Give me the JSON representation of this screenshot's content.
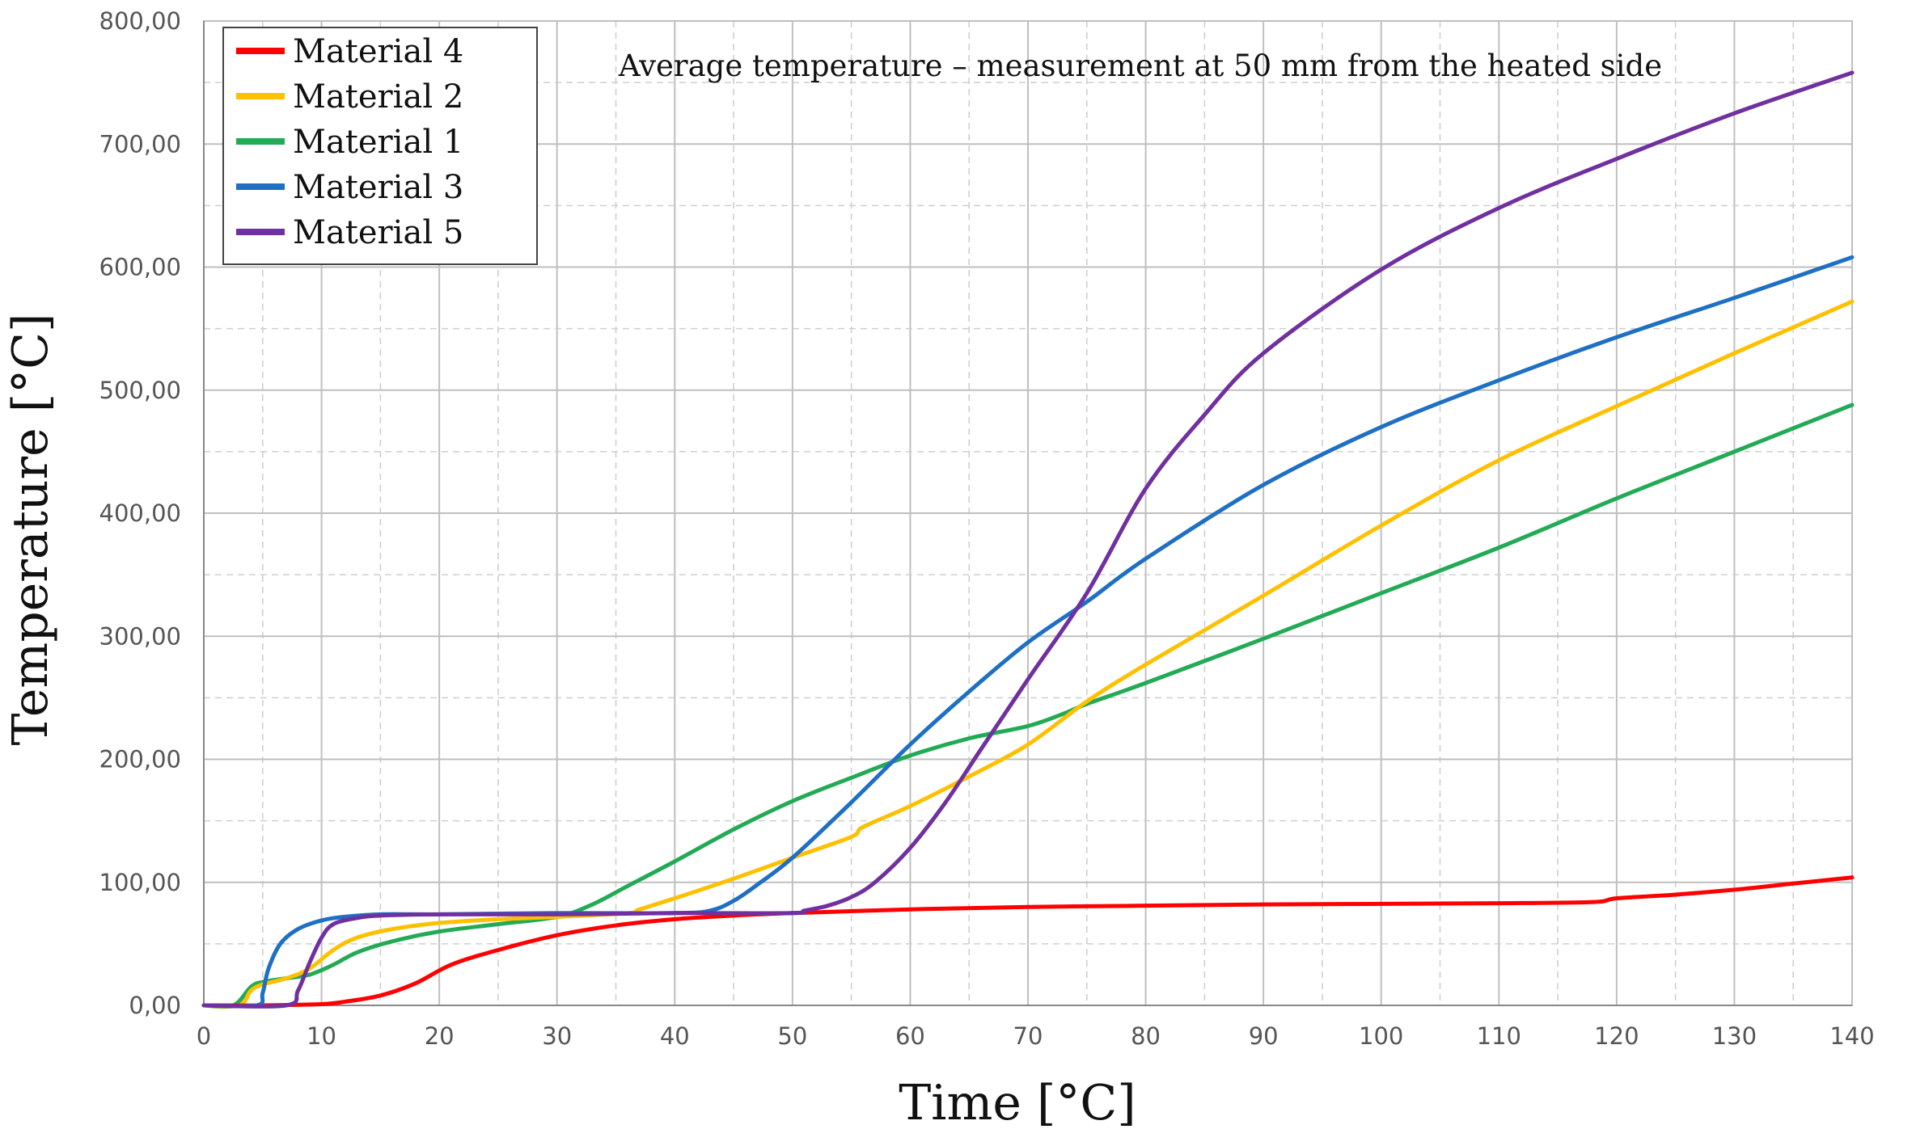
{
  "chart_data": {
    "type": "line",
    "title": "Average temperature – measurement at 50 mm from the heated side",
    "xlabel": "Time [°C]",
    "ylabel": "Temperature [°C]",
    "xlim": [
      0,
      140
    ],
    "ylim": [
      0,
      800
    ],
    "xticks": [
      "0",
      "10",
      "20",
      "30",
      "40",
      "50",
      "60",
      "70",
      "80",
      "90",
      "100",
      "110",
      "120",
      "130",
      "140"
    ],
    "yticks": [
      "0,00",
      "100,00",
      "200,00",
      "300,00",
      "400,00",
      "500,00",
      "600,00",
      "700,00",
      "800,00"
    ],
    "grid": true,
    "legend_position": "top-left",
    "series": [
      {
        "name": "Material 4",
        "color": "#ff0000",
        "x": [
          0,
          5,
          10,
          12,
          15,
          18,
          21,
          25,
          30,
          35,
          40,
          45,
          50,
          60,
          70,
          80,
          90,
          100,
          110,
          118,
          120,
          125,
          130,
          135,
          140
        ],
        "y": [
          0,
          0,
          1,
          3,
          8,
          18,
          33,
          45,
          57,
          65,
          70,
          73,
          75,
          78,
          80,
          81,
          82,
          82.5,
          83,
          84,
          87,
          90,
          94,
          99,
          104
        ]
      },
      {
        "name": "Material 2",
        "color": "#ffc000",
        "x": [
          0,
          3,
          4,
          5,
          7,
          9,
          11,
          13,
          16,
          20,
          25,
          30,
          36,
          37,
          40,
          45,
          50,
          55,
          56,
          60,
          65,
          70,
          75,
          80,
          90,
          100,
          110,
          120,
          130,
          140
        ],
        "y": [
          0,
          0,
          12,
          17,
          22,
          30,
          45,
          55,
          62,
          67,
          70,
          72,
          75,
          78,
          87,
          103,
          120,
          137,
          145,
          162,
          186,
          212,
          247,
          277,
          333,
          390,
          443,
          487,
          530,
          572
        ]
      },
      {
        "name": "Material 1",
        "color": "#22aa55",
        "x": [
          0,
          2.5,
          4,
          5,
          7,
          9,
          11,
          13,
          16,
          20,
          25,
          30,
          33,
          36,
          40,
          45,
          50,
          55,
          60,
          65,
          70,
          73,
          75,
          80,
          90,
          100,
          110,
          120,
          130,
          140
        ],
        "y": [
          0,
          0,
          15,
          19,
          22,
          25,
          33,
          43,
          52,
          60,
          66,
          72,
          82,
          97,
          117,
          143,
          166,
          185,
          203,
          217,
          227,
          237,
          245,
          262,
          298,
          335,
          372,
          412,
          450,
          488
        ]
      },
      {
        "name": "Material 3",
        "color": "#1f6fc4",
        "x": [
          0,
          4.5,
          5,
          5.5,
          6.5,
          8,
          10,
          12,
          15,
          20,
          30,
          40,
          43,
          45,
          47,
          50,
          55,
          60,
          65,
          70,
          75,
          80,
          90,
          100,
          110,
          120,
          130,
          140
        ],
        "y": [
          0,
          0,
          10,
          30,
          50,
          62,
          69,
          72,
          74,
          74,
          75,
          75,
          77,
          85,
          98,
          120,
          165,
          212,
          255,
          295,
          328,
          363,
          423,
          470,
          508,
          543,
          575,
          608
        ]
      },
      {
        "name": "Material 5",
        "color": "#7030a0",
        "x": [
          0,
          7,
          8,
          9,
          10,
          11,
          13,
          15,
          20,
          30,
          40,
          50,
          51,
          53,
          55,
          57,
          60,
          63,
          66,
          70,
          75,
          80,
          85,
          90,
          100,
          110,
          120,
          130,
          140
        ],
        "y": [
          0,
          0,
          12,
          35,
          55,
          66,
          71,
          73,
          74,
          74,
          75,
          75,
          77,
          81,
          88,
          100,
          128,
          165,
          208,
          265,
          335,
          420,
          480,
          530,
          598,
          648,
          688,
          725,
          758
        ]
      }
    ]
  }
}
